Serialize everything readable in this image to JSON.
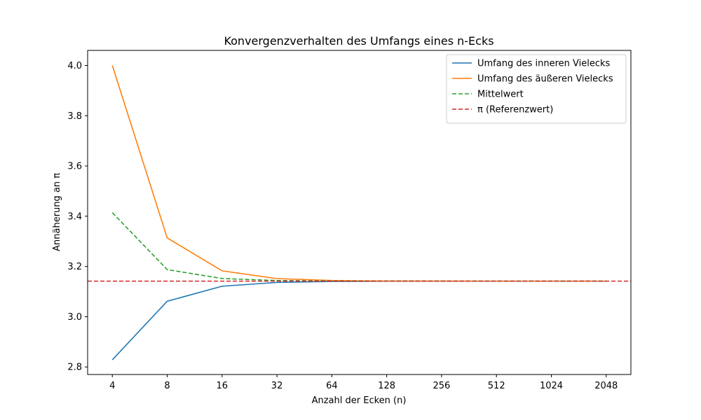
{
  "chart_data": {
    "type": "line",
    "title": "Konvergenzverhalten des Umfangs eines n-Ecks",
    "xlabel": "Anzahl der Ecken (n)",
    "ylabel": "Annäherung an π",
    "x": [
      4,
      8,
      16,
      32,
      64,
      128,
      256,
      512,
      1024,
      2048
    ],
    "x_tick_labels": [
      "4",
      "8",
      "16",
      "32",
      "64",
      "128",
      "256",
      "512",
      "1024",
      "2048"
    ],
    "y_ticks": [
      2.8,
      3.0,
      3.2,
      3.4,
      3.6,
      3.8,
      4.0
    ],
    "y_tick_labels": [
      "2.8",
      "3.0",
      "3.2",
      "3.4",
      "3.6",
      "3.8",
      "4.0"
    ],
    "xscale": "log2",
    "ylim": [
      2.77,
      4.06
    ],
    "grid": false,
    "legend_position": "top-right",
    "series": [
      {
        "name": "Umfang des inneren Vielecks",
        "color": "#1f77b4",
        "style": "solid",
        "values": [
          2.8284,
          3.0615,
          3.1214,
          3.1365,
          3.1403,
          3.1413,
          3.1415,
          3.1416,
          3.1416,
          3.1416
        ]
      },
      {
        "name": "Umfang des äußeren Vielecks",
        "color": "#ff7f0e",
        "style": "solid",
        "values": [
          4.0,
          3.3137,
          3.1826,
          3.1517,
          3.1441,
          3.1422,
          3.1418,
          3.1416,
          3.1416,
          3.1416
        ]
      },
      {
        "name": "Mittelwert",
        "color": "#2ca02c",
        "style": "dashed",
        "values": [
          3.4142,
          3.1876,
          3.152,
          3.1441,
          3.1422,
          3.1418,
          3.1416,
          3.1416,
          3.1416,
          3.1416
        ]
      },
      {
        "name": "π (Referenzwert)",
        "color": "#d62728",
        "style": "dashed",
        "type": "hline",
        "y": 3.14159
      }
    ]
  }
}
